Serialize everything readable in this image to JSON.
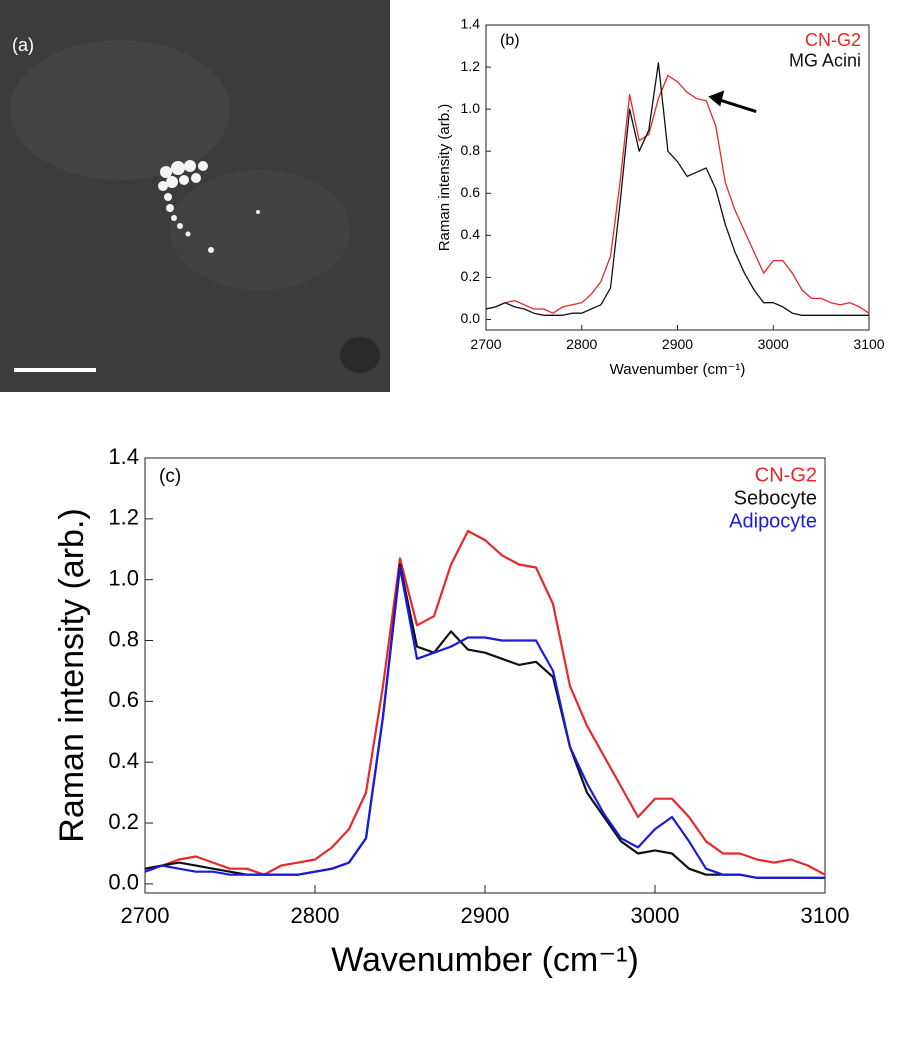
{
  "image_panel": {
    "label": "(a)"
  },
  "chart_data": [
    {
      "type": "line",
      "panel_label": "(b)",
      "x_label": "Wavenumber (cm⁻¹)",
      "y_label": "Raman intensity (arb.)",
      "x": [
        2700,
        2710,
        2720,
        2730,
        2740,
        2750,
        2760,
        2770,
        2780,
        2790,
        2800,
        2810,
        2820,
        2830,
        2840,
        2850,
        2860,
        2870,
        2880,
        2890,
        2900,
        2910,
        2920,
        2930,
        2940,
        2950,
        2960,
        2970,
        2980,
        2990,
        3000,
        3010,
        3020,
        3030,
        3040,
        3050,
        3060,
        3070,
        3080,
        3090,
        3100
      ],
      "series": [
        {
          "name": "CN-G2",
          "color": "#e8282b",
          "values": [
            0.05,
            0.06,
            0.08,
            0.09,
            0.07,
            0.05,
            0.05,
            0.03,
            0.06,
            0.07,
            0.08,
            0.12,
            0.18,
            0.3,
            0.65,
            1.07,
            0.85,
            0.88,
            1.05,
            1.16,
            1.13,
            1.08,
            1.05,
            1.04,
            0.92,
            0.65,
            0.52,
            0.42,
            0.32,
            0.22,
            0.28,
            0.28,
            0.22,
            0.14,
            0.1,
            0.1,
            0.08,
            0.07,
            0.08,
            0.06,
            0.03
          ]
        },
        {
          "name": "MG Acini",
          "color": "#111111",
          "values": [
            0.05,
            0.06,
            0.08,
            0.06,
            0.05,
            0.03,
            0.02,
            0.02,
            0.02,
            0.03,
            0.03,
            0.05,
            0.07,
            0.15,
            0.55,
            1.0,
            0.8,
            0.9,
            1.22,
            0.8,
            0.75,
            0.68,
            0.7,
            0.72,
            0.62,
            0.45,
            0.32,
            0.22,
            0.14,
            0.08,
            0.08,
            0.06,
            0.03,
            0.02,
            0.02,
            0.02,
            0.02,
            0.02,
            0.02,
            0.02,
            0.02
          ]
        }
      ],
      "xlim": [
        2700,
        3100
      ],
      "xticks": [
        2700,
        2800,
        2900,
        3000,
        3100
      ],
      "ylim": [
        -0.05,
        1.4
      ],
      "yticks": [
        {
          "value": 0,
          "label": "0.0"
        },
        0.2,
        0.4,
        0.6,
        0.8,
        {
          "value": 1,
          "label": "1.0"
        },
        1.2,
        1.4
      ],
      "grid": false,
      "legend": "upper right"
    },
    {
      "type": "line",
      "panel_label": "(c)",
      "x_label": "Wavenumber (cm⁻¹)",
      "y_label": "Raman intensity (arb.)",
      "x": [
        2700,
        2710,
        2720,
        2730,
        2740,
        2750,
        2760,
        2770,
        2780,
        2790,
        2800,
        2810,
        2820,
        2830,
        2840,
        2850,
        2860,
        2870,
        2880,
        2890,
        2900,
        2910,
        2920,
        2930,
        2940,
        2950,
        2960,
        2970,
        2980,
        2990,
        3000,
        3010,
        3020,
        3030,
        3040,
        3050,
        3060,
        3070,
        3080,
        3090,
        3100
      ],
      "series": [
        {
          "name": "CN-G2",
          "color": "#e8282b",
          "values": [
            0.05,
            0.06,
            0.08,
            0.09,
            0.07,
            0.05,
            0.05,
            0.03,
            0.06,
            0.07,
            0.08,
            0.12,
            0.18,
            0.3,
            0.65,
            1.07,
            0.85,
            0.88,
            1.05,
            1.16,
            1.13,
            1.08,
            1.05,
            1.04,
            0.92,
            0.65,
            0.52,
            0.42,
            0.32,
            0.22,
            0.28,
            0.28,
            0.22,
            0.14,
            0.1,
            0.1,
            0.08,
            0.07,
            0.08,
            0.06,
            0.03
          ]
        },
        {
          "name": "Sebocyte",
          "color": "#111111",
          "values": [
            0.05,
            0.06,
            0.07,
            0.06,
            0.05,
            0.04,
            0.03,
            0.03,
            0.03,
            0.03,
            0.04,
            0.05,
            0.07,
            0.15,
            0.55,
            1.05,
            0.78,
            0.76,
            0.83,
            0.77,
            0.76,
            0.74,
            0.72,
            0.73,
            0.68,
            0.45,
            0.3,
            0.22,
            0.14,
            0.1,
            0.11,
            0.1,
            0.05,
            0.03,
            0.03,
            0.03,
            0.02,
            0.02,
            0.02,
            0.02,
            0.02
          ]
        },
        {
          "name": "Adipocyte",
          "color": "#1a1ae0",
          "values": [
            0.04,
            0.06,
            0.05,
            0.04,
            0.04,
            0.03,
            0.03,
            0.03,
            0.03,
            0.03,
            0.04,
            0.05,
            0.07,
            0.15,
            0.55,
            1.04,
            0.74,
            0.76,
            0.78,
            0.81,
            0.81,
            0.8,
            0.8,
            0.8,
            0.7,
            0.45,
            0.33,
            0.23,
            0.15,
            0.12,
            0.18,
            0.22,
            0.14,
            0.05,
            0.03,
            0.03,
            0.02,
            0.02,
            0.02,
            0.02,
            0.02
          ]
        }
      ],
      "xlim": [
        2700,
        3100
      ],
      "xticks": [
        2700,
        2800,
        2900,
        3000,
        3100
      ],
      "ylim": [
        -0.03,
        1.4
      ],
      "yticks": [
        {
          "value": 0,
          "label": "0.0"
        },
        0.2,
        0.4,
        0.6,
        0.8,
        {
          "value": 1,
          "label": "1.0"
        },
        1.2,
        1.4
      ],
      "grid": false,
      "legend": "upper right"
    }
  ]
}
